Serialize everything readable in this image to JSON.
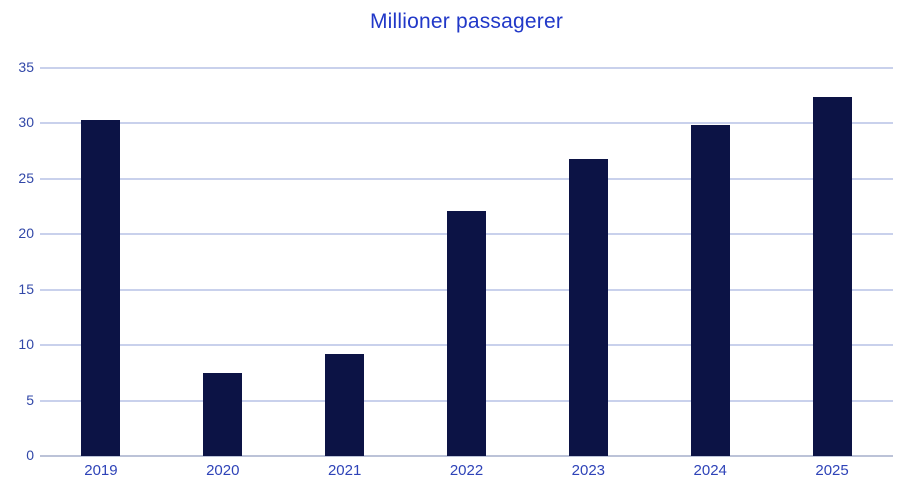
{
  "chart_data": {
    "type": "bar",
    "title": "Millioner passagerer",
    "categories": [
      "2019",
      "2020",
      "2021",
      "2022",
      "2023",
      "2024",
      "2025"
    ],
    "values": [
      30.3,
      7.5,
      9.2,
      22.1,
      26.8,
      29.9,
      32.4
    ],
    "xlabel": "",
    "ylabel": "",
    "ylim": [
      0,
      35
    ],
    "yticks": [
      0,
      5,
      10,
      15,
      20,
      25,
      30,
      35
    ],
    "grid": true,
    "legend": false,
    "colors": {
      "bar": "#0c1345",
      "title": "#2138c8",
      "y_tick_label": "#3248a8",
      "x_tick_label": "#2e43b8",
      "gridline": "#c9d1ec",
      "axis_line": "#bcc3d8",
      "background": "#ffffff"
    }
  }
}
